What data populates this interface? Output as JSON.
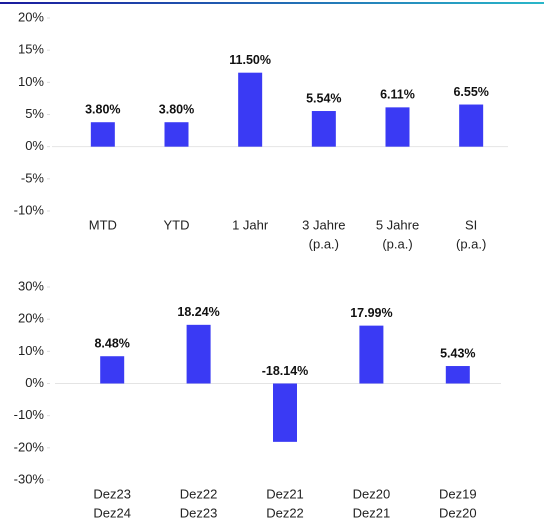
{
  "chart_data": [
    {
      "type": "bar",
      "categories": [
        [
          "MTD"
        ],
        [
          "YTD"
        ],
        [
          "1 Jahr"
        ],
        [
          "3 Jahre",
          "(p.a.)"
        ],
        [
          "5 Jahre",
          "(p.a.)"
        ],
        [
          "SI",
          "(p.a.)"
        ]
      ],
      "values": [
        3.8,
        3.8,
        11.5,
        5.54,
        6.11,
        6.55
      ],
      "value_labels": [
        "3.80%",
        "3.80%",
        "11.50%",
        "5.54%",
        "6.11%",
        "6.55%"
      ],
      "color": "#3a3af4",
      "ylim": [
        -10,
        20
      ],
      "yticks": [
        {
          "value": -10,
          "label": "-10%"
        },
        {
          "value": -5,
          "label": "-5%"
        },
        {
          "value": 0,
          "label": "0%"
        },
        {
          "value": 5,
          "label": "5%"
        },
        {
          "value": 10,
          "label": "10%"
        },
        {
          "value": 15,
          "label": "15%"
        },
        {
          "value": 20,
          "label": "20%"
        }
      ]
    },
    {
      "type": "bar",
      "categories": [
        [
          "Dez23",
          "Dez24"
        ],
        [
          "Dez22",
          "Dez23"
        ],
        [
          "Dez21",
          "Dez22"
        ],
        [
          "Dez20",
          "Dez21"
        ],
        [
          "Dez19",
          "Dez20"
        ]
      ],
      "values": [
        8.48,
        18.24,
        -18.14,
        17.99,
        5.43
      ],
      "value_labels": [
        "8.48%",
        "18.24%",
        "-18.14%",
        "17.99%",
        "5.43%"
      ],
      "color": "#3a3af4",
      "ylim": [
        -30,
        30
      ],
      "yticks": [
        {
          "value": -30,
          "label": "-30%"
        },
        {
          "value": -20,
          "label": "-20%"
        },
        {
          "value": -10,
          "label": "-10%"
        },
        {
          "value": 0,
          "label": "0%"
        },
        {
          "value": 10,
          "label": "10%"
        },
        {
          "value": 20,
          "label": "20%"
        },
        {
          "value": 30,
          "label": "30%"
        }
      ]
    }
  ]
}
